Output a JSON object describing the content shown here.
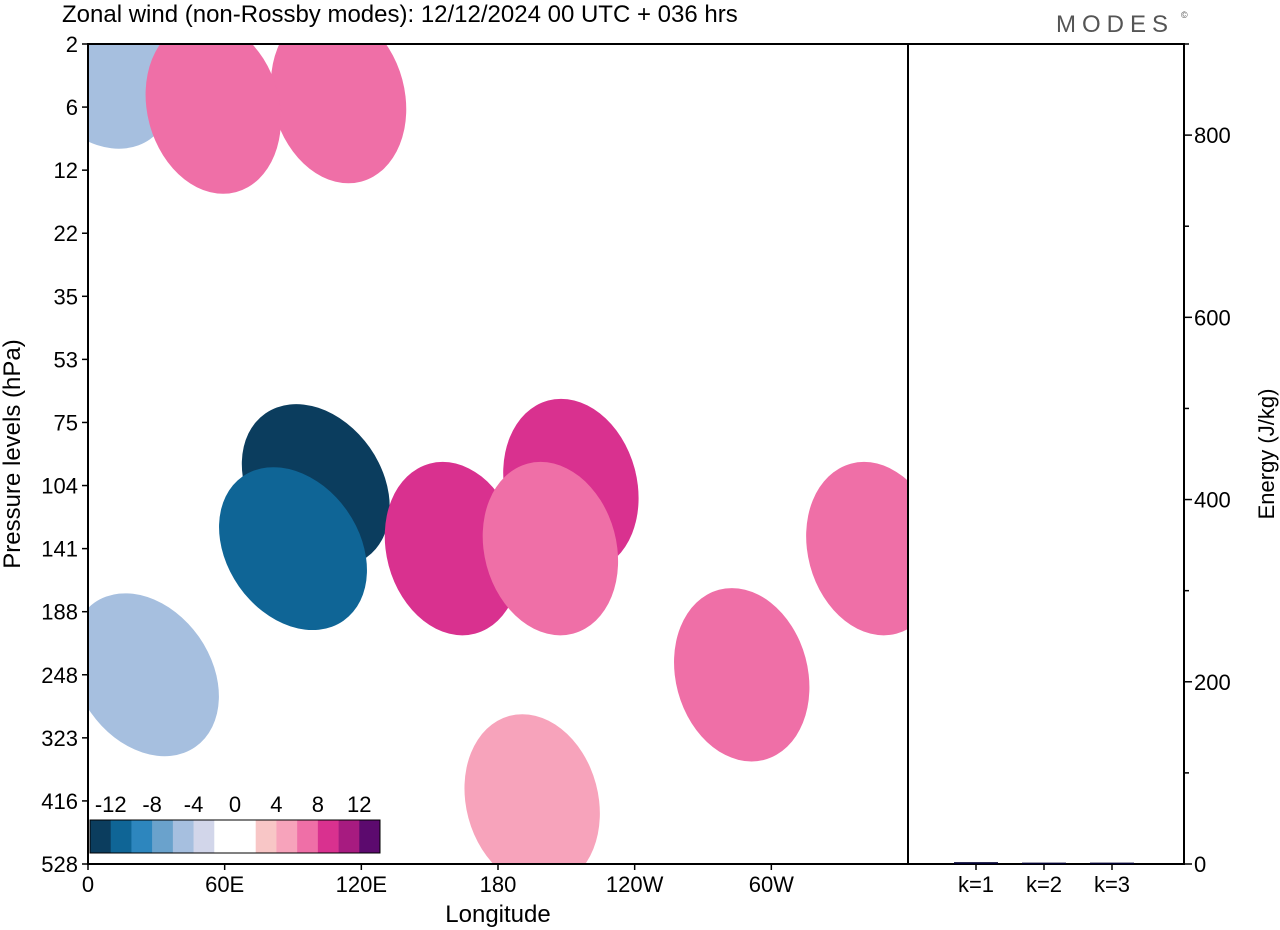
{
  "title": "Zonal wind (non-Rossby modes):  12/12/2024  00 UTC  + 036 hrs",
  "brand": "MODES",
  "brand_mark": "©",
  "chart_data": [
    {
      "type": "heatmap",
      "xlabel": "Longitude",
      "ylabel": "Pressure levels (hPa)",
      "x_ticks": [
        "0",
        "60E",
        "120E",
        "180",
        "120W",
        "60W"
      ],
      "x_tick_values": [
        0,
        60,
        120,
        180,
        240,
        300
      ],
      "xlim": [
        0,
        360
      ],
      "y_ticks": [
        "2",
        "6",
        "12",
        "22",
        "35",
        "53",
        "75",
        "104",
        "141",
        "188",
        "248",
        "323",
        "416",
        "528"
      ],
      "colorbar": {
        "labels": [
          "-12",
          "-8",
          "-4",
          "0",
          "4",
          "8",
          "12"
        ],
        "colors": [
          "#0b3d5e",
          "#0f6596",
          "#2d86be",
          "#6aa2cc",
          "#a6bfdf",
          "#d2d6ea",
          "#ffffff",
          "#ffffff",
          "#f8c6c6",
          "#f7a3bb",
          "#ef6fa7",
          "#d9318f",
          "#a71b80",
          "#5c0a6e"
        ]
      },
      "contour_regions": [
        {
          "lon": 100,
          "level": 104,
          "value": -14
        },
        {
          "lon": 90,
          "level": 141,
          "value": -12
        },
        {
          "lon": 25,
          "level": 248,
          "value": -6
        },
        {
          "lon": 5,
          "level": 3,
          "value": -6
        },
        {
          "lon": 160,
          "level": 141,
          "value": 9
        },
        {
          "lon": 212,
          "level": 104,
          "value": 8
        },
        {
          "lon": 203,
          "level": 141,
          "value": 7
        },
        {
          "lon": 110,
          "level": 5,
          "value": 7
        },
        {
          "lon": 55,
          "level": 6,
          "value": 6
        },
        {
          "lon": 287,
          "level": 248,
          "value": 6
        },
        {
          "lon": 195,
          "level": 416,
          "value": 5
        },
        {
          "lon": 345,
          "level": 141,
          "value": 6
        }
      ]
    },
    {
      "type": "bar",
      "categories": [
        "k=1",
        "k=2",
        "k=3"
      ],
      "values": [
        2,
        1.5,
        1.5
      ],
      "ylabel": "Energy (J/kg)",
      "ylim": [
        0,
        900
      ],
      "y_ticks": [
        0,
        200,
        400,
        600,
        800
      ]
    }
  ]
}
